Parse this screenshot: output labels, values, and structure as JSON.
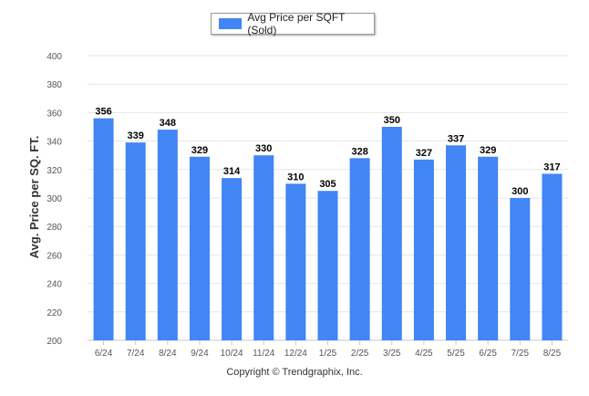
{
  "legend": {
    "label": "Avg Price per SQFT (Sold)"
  },
  "footer": {
    "copyright": "Copyright © Trendgraphix, Inc."
  },
  "colors": {
    "bar": "#4285f4",
    "grid": "#e6e6e6"
  },
  "chart_data": {
    "type": "bar",
    "title": "",
    "xlabel": "",
    "ylabel": "Avg. Price per SQ. FT.",
    "ylim": [
      200,
      400
    ],
    "yticks": [
      200,
      220,
      240,
      260,
      280,
      300,
      320,
      340,
      360,
      380,
      400
    ],
    "grid": true,
    "legend_position": "top-center",
    "categories": [
      "6/24",
      "7/24",
      "8/24",
      "9/24",
      "10/24",
      "11/24",
      "12/24",
      "1/25",
      "2/25",
      "3/25",
      "4/25",
      "5/25",
      "6/25",
      "7/25",
      "8/25"
    ],
    "series": [
      {
        "name": "Avg Price per SQFT (Sold)",
        "values": [
          356,
          339,
          348,
          329,
          314,
          330,
          310,
          305,
          328,
          350,
          327,
          337,
          329,
          300,
          317
        ]
      }
    ]
  }
}
